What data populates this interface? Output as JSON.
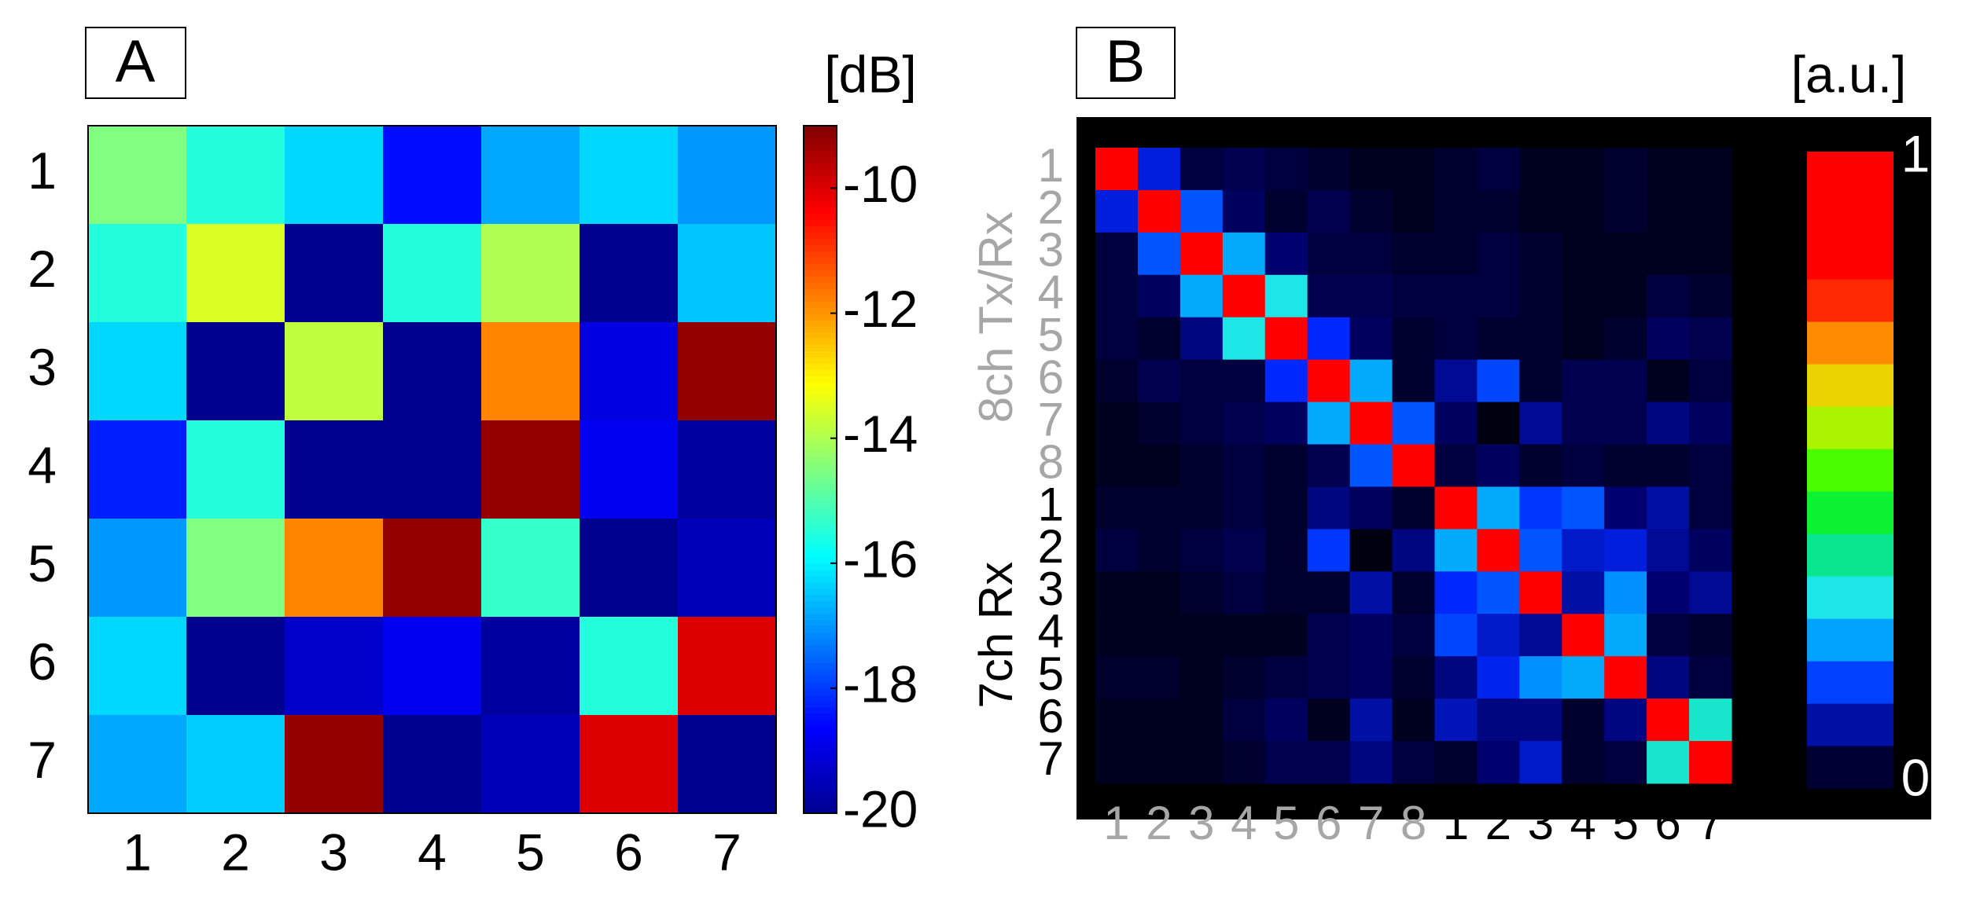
{
  "chart_data": [
    {
      "type": "heatmap",
      "panel_label": "A",
      "colorbar_label": "[dB]",
      "colormap": "jet",
      "x_categories": [
        "1",
        "2",
        "3",
        "4",
        "5",
        "6",
        "7"
      ],
      "y_categories": [
        "1",
        "2",
        "3",
        "4",
        "5",
        "6",
        "7"
      ],
      "values": [
        [
          -14.5,
          -15.5,
          -16.3,
          -18.5,
          -16.8,
          -16.3,
          -17
        ],
        [
          -15.5,
          -13.5,
          -20,
          -15.5,
          -14,
          -20,
          -16.5
        ],
        [
          -16.3,
          -20,
          -13.8,
          -20,
          -11.8,
          -19,
          -9.2
        ],
        [
          -18.3,
          -15.5,
          -20,
          -20,
          -9.2,
          -18.8,
          -19.8
        ],
        [
          -17,
          -14.5,
          -11.8,
          -9.2,
          -15.3,
          -20,
          -19.5
        ],
        [
          -16.3,
          -20,
          -19.3,
          -18.8,
          -19.8,
          -15.5,
          -10
        ],
        [
          -16.8,
          -16.4,
          -9.2,
          -20,
          -19.5,
          -10,
          -20
        ]
      ],
      "zlim": [
        -20,
        -9
      ],
      "zticks": [
        -20,
        -18,
        -16,
        -14,
        -12,
        -10
      ]
    },
    {
      "type": "heatmap",
      "panel_label": "B",
      "colorbar_label": "[a.u.]",
      "colormap": "jet-dark",
      "background": "#000000",
      "x_categories": [
        "1",
        "2",
        "3",
        "4",
        "5",
        "6",
        "7",
        "8",
        "1",
        "2",
        "3",
        "4",
        "5",
        "6",
        "7"
      ],
      "y_categories": [
        "1",
        "2",
        "3",
        "4",
        "5",
        "6",
        "7",
        "8",
        "1",
        "2",
        "3",
        "4",
        "5",
        "6",
        "7"
      ],
      "category_colors": [
        "#a6a6a6",
        "#a6a6a6",
        "#a6a6a6",
        "#a6a6a6",
        "#a6a6a6",
        "#a6a6a6",
        "#a6a6a6",
        "#a6a6a6",
        "#000000",
        "#000000",
        "#000000",
        "#000000",
        "#000000",
        "#000000",
        "#000000"
      ],
      "groups": [
        {
          "label": "8ch Tx/Rx",
          "color": "#a6a6a6"
        },
        {
          "label": "7ch Rx",
          "color": "#000000"
        }
      ],
      "values": [
        [
          1,
          0.13,
          0.04,
          0.05,
          0.04,
          0.03,
          0.02,
          0.02,
          0.03,
          0.04,
          0.02,
          0.02,
          0.03,
          0.02,
          0.02
        ],
        [
          0.13,
          1,
          0.18,
          0.06,
          0.03,
          0.05,
          0.03,
          0.02,
          0.03,
          0.03,
          0.02,
          0.02,
          0.03,
          0.02,
          0.02
        ],
        [
          0.04,
          0.18,
          1,
          0.24,
          0.07,
          0.04,
          0.04,
          0.03,
          0.03,
          0.04,
          0.03,
          0.02,
          0.02,
          0.02,
          0.02
        ],
        [
          0.04,
          0.06,
          0.24,
          1,
          0.3,
          0.05,
          0.05,
          0.04,
          0.04,
          0.04,
          0.03,
          0.02,
          0.02,
          0.04,
          0.03
        ],
        [
          0.04,
          0.03,
          0.08,
          0.3,
          1,
          0.15,
          0.06,
          0.03,
          0.04,
          0.03,
          0.03,
          0.02,
          0.03,
          0.06,
          0.05
        ],
        [
          0.03,
          0.05,
          0.04,
          0.04,
          0.15,
          1,
          0.24,
          0.03,
          0.09,
          0.17,
          0.03,
          0.05,
          0.05,
          0.02,
          0.04
        ],
        [
          0.02,
          0.03,
          0.04,
          0.05,
          0.06,
          0.24,
          1,
          0.18,
          0.06,
          0.01,
          0.09,
          0.05,
          0.05,
          0.08,
          0.06
        ],
        [
          0.02,
          0.02,
          0.03,
          0.04,
          0.03,
          0.05,
          0.18,
          1,
          0.04,
          0.06,
          0.03,
          0.04,
          0.03,
          0.03,
          0.04
        ],
        [
          0.03,
          0.03,
          0.03,
          0.04,
          0.03,
          0.08,
          0.06,
          0.03,
          1,
          0.24,
          0.16,
          0.18,
          0.07,
          0.1,
          0.04
        ],
        [
          0.04,
          0.03,
          0.04,
          0.05,
          0.03,
          0.16,
          0.01,
          0.08,
          0.24,
          1,
          0.18,
          0.12,
          0.13,
          0.09,
          0.06
        ],
        [
          0.02,
          0.02,
          0.03,
          0.04,
          0.03,
          0.03,
          0.1,
          0.03,
          0.15,
          0.18,
          1,
          0.1,
          0.22,
          0.07,
          0.09
        ],
        [
          0.02,
          0.02,
          0.02,
          0.02,
          0.02,
          0.05,
          0.06,
          0.04,
          0.17,
          0.12,
          0.09,
          1,
          0.24,
          0.04,
          0.03
        ],
        [
          0.03,
          0.03,
          0.02,
          0.03,
          0.04,
          0.05,
          0.06,
          0.03,
          0.08,
          0.14,
          0.22,
          0.24,
          1,
          0.08,
          0.04
        ],
        [
          0.02,
          0.02,
          0.02,
          0.04,
          0.06,
          0.02,
          0.1,
          0.02,
          0.11,
          0.08,
          0.08,
          0.03,
          0.08,
          1,
          0.32
        ],
        [
          0.02,
          0.02,
          0.02,
          0.03,
          0.05,
          0.05,
          0.08,
          0.04,
          0.03,
          0.07,
          0.12,
          0.03,
          0.04,
          0.32,
          1
        ]
      ],
      "zlim": [
        0,
        1
      ],
      "zticks": [
        0,
        1
      ]
    }
  ]
}
